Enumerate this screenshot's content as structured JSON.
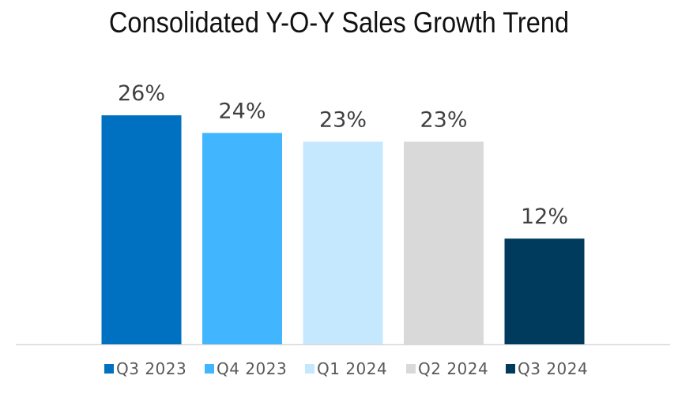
{
  "chart_data": {
    "type": "bar",
    "title": "Consolidated Y-O-Y Sales Growth Trend",
    "xlabel": "",
    "ylabel": "",
    "categories": [
      "Q3 2023",
      "Q4 2023",
      "Q1 2024",
      "Q2 2024",
      "Q3 2024"
    ],
    "values": [
      26,
      24,
      23,
      23,
      12
    ],
    "data_labels": [
      "26%",
      "24%",
      "23%",
      "23%",
      "12%"
    ],
    "colors": [
      "#0070C0",
      "#41B6FF",
      "#C6E8FF",
      "#D9D9D9",
      "#003A5D"
    ],
    "ylim": [
      0,
      26
    ],
    "grid": false,
    "legend": "bottom"
  }
}
